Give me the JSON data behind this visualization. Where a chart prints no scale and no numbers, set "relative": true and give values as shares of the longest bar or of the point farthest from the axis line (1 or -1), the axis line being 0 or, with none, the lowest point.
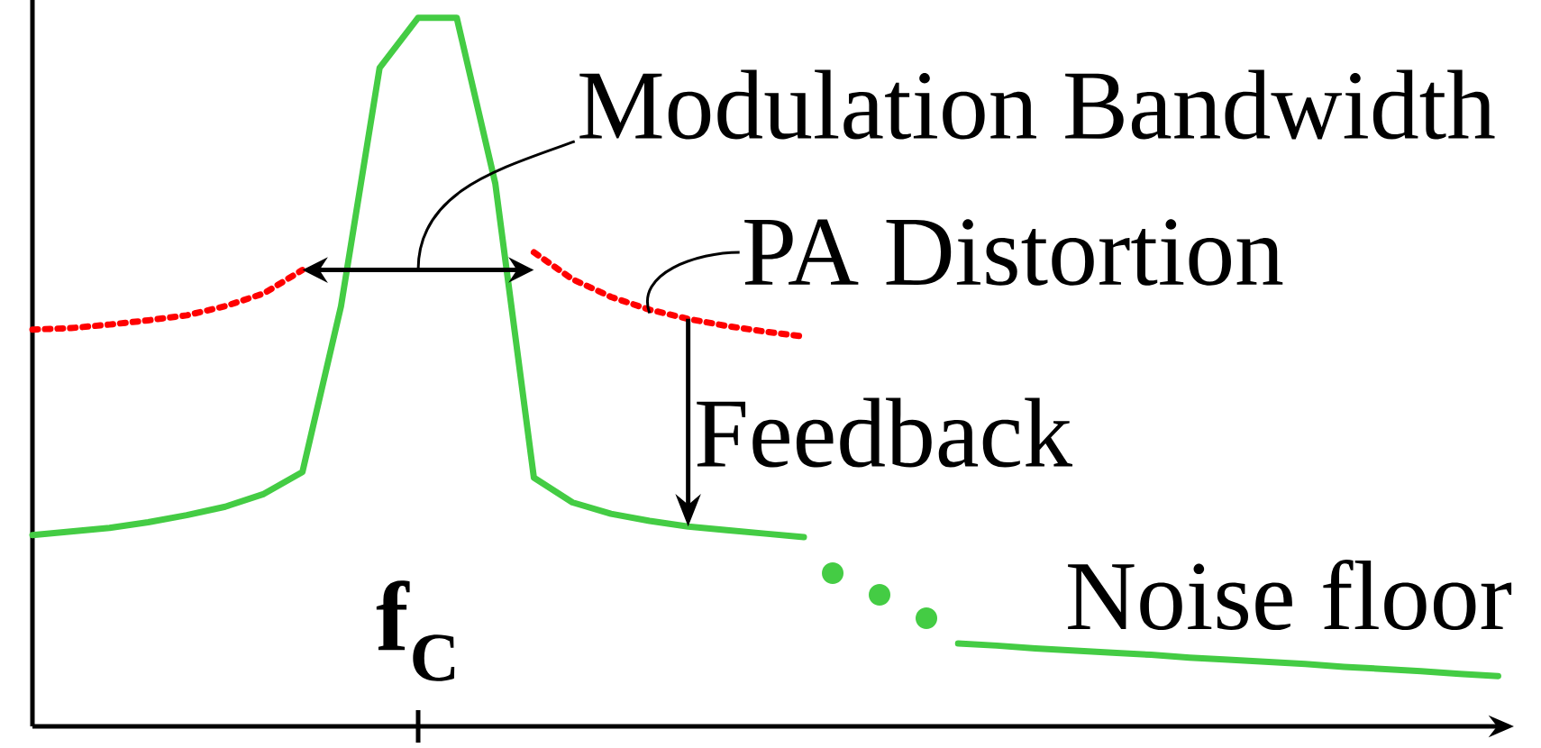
{
  "chart_data": {
    "type": "line",
    "relative": true,
    "categories": [
      null,
      null,
      null,
      null,
      null,
      null,
      null,
      null,
      null,
      null,
      null,
      null,
      null,
      null,
      null,
      null,
      null,
      null,
      null,
      null,
      null,
      null,
      null,
      null,
      null,
      null,
      null,
      null,
      null,
      null,
      null,
      null,
      null,
      null,
      null,
      null,
      null,
      null,
      null
    ],
    "series": [
      {
        "color": "#44cc44",
        "line_style": "solid",
        "values": [
          0.27,
          0.275,
          0.28,
          0.288,
          0.298,
          0.31,
          0.328,
          0.359,
          0.593,
          0.929,
          1.0,
          1.0,
          0.766,
          0.351,
          0.316,
          0.3,
          0.29,
          0.282,
          0.277,
          0.272,
          0.267,
          null,
          null,
          null,
          null,
          null,
          null,
          null,
          null,
          null,
          null,
          null,
          null,
          null,
          null,
          null,
          null,
          null,
          null
        ]
      },
      {
        "color": "#44cc44",
        "line_style": "solid",
        "values": [
          null,
          null,
          null,
          null,
          null,
          null,
          null,
          null,
          null,
          null,
          null,
          null,
          null,
          null,
          null,
          null,
          null,
          null,
          null,
          null,
          null,
          null,
          null,
          null,
          0.117,
          0.114,
          0.11,
          0.107,
          0.104,
          0.101,
          0.097,
          0.094,
          0.091,
          0.088,
          0.084,
          0.081,
          0.078,
          0.074,
          0.071
        ]
      },
      {
        "color": "#ff0000",
        "line_style": "dotted",
        "values": [
          0.56,
          0.562,
          0.567,
          0.573,
          0.58,
          0.593,
          0.611,
          0.644,
          null,
          null,
          null,
          null,
          null,
          0.669,
          0.631,
          0.606,
          0.588,
          0.575,
          0.565,
          0.557,
          0.55,
          null,
          null,
          null,
          null,
          null,
          null,
          null,
          null,
          null,
          null,
          null,
          null,
          null,
          null,
          null,
          null,
          null,
          null
        ]
      }
    ],
    "annotations": [
      "Modulation Bandwidth",
      "PA Distortion",
      "Feedback",
      "Noise floor",
      "**f**$_{C}$"
    ]
  }
}
